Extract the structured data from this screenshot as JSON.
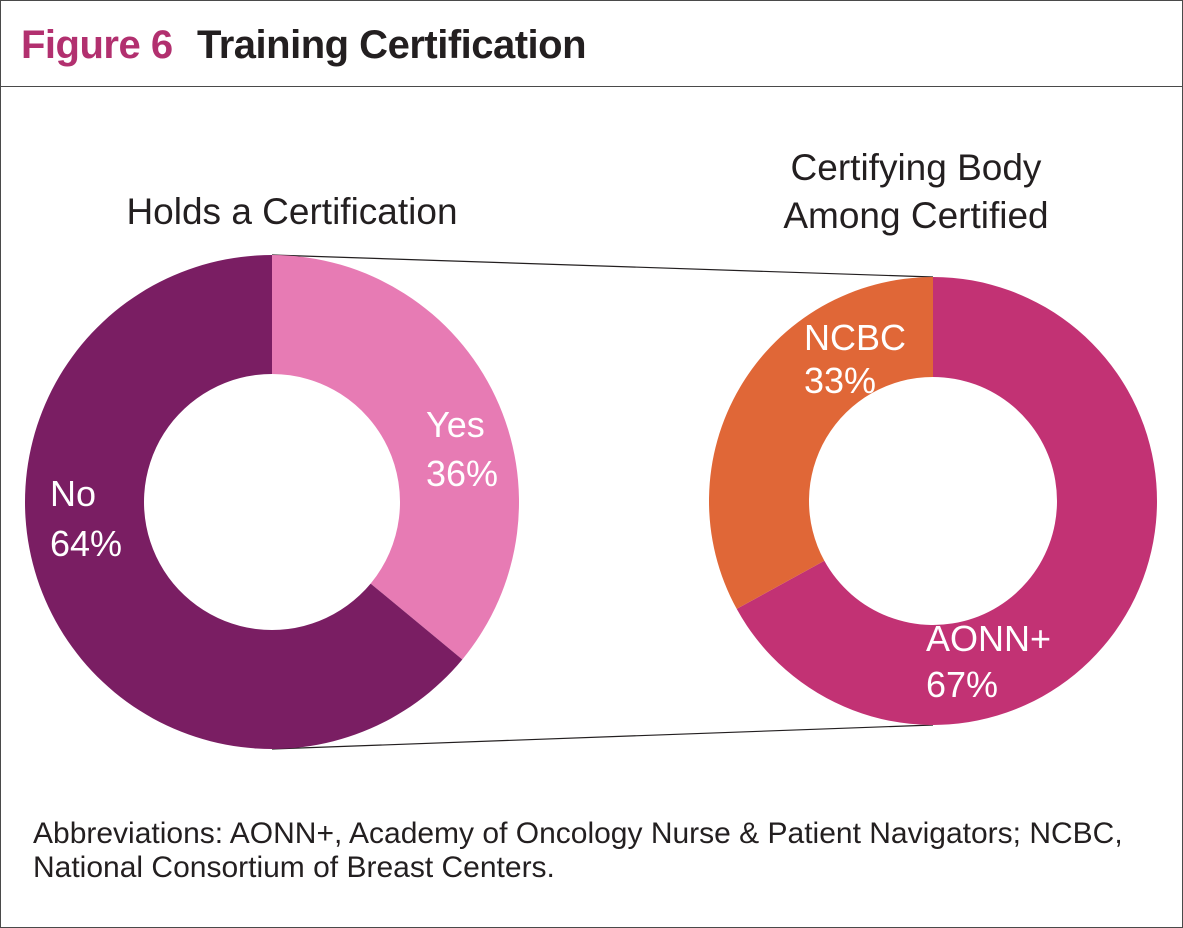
{
  "figure": {
    "label": "Figure 6",
    "title": "Training Certification"
  },
  "colors": {
    "no": "#7a1e63",
    "yes": "#e77bb4",
    "aonn": "#c23274",
    "ncbc": "#e06737",
    "label_on_slice": "#ffffff",
    "text": "#231f20"
  },
  "chart_data": [
    {
      "type": "pie",
      "style": "donut",
      "title": "Holds a Certification",
      "slices": [
        {
          "label": "Yes",
          "value": 36,
          "value_label": "36%"
        },
        {
          "label": "No",
          "value": 64,
          "value_label": "64%"
        }
      ]
    },
    {
      "type": "pie",
      "style": "donut",
      "title_lines": [
        "Certifying Body",
        "Among Certified"
      ],
      "slices": [
        {
          "label": "AONN+",
          "value": 67,
          "value_label": "67%"
        },
        {
          "label": "NCBC",
          "value": 33,
          "value_label": "33%"
        }
      ]
    }
  ],
  "footnote": "Abbreviations: AONN+, Academy of Oncology Nurse & Patient Navigators; NCBC, National Consortium of Breast Centers."
}
